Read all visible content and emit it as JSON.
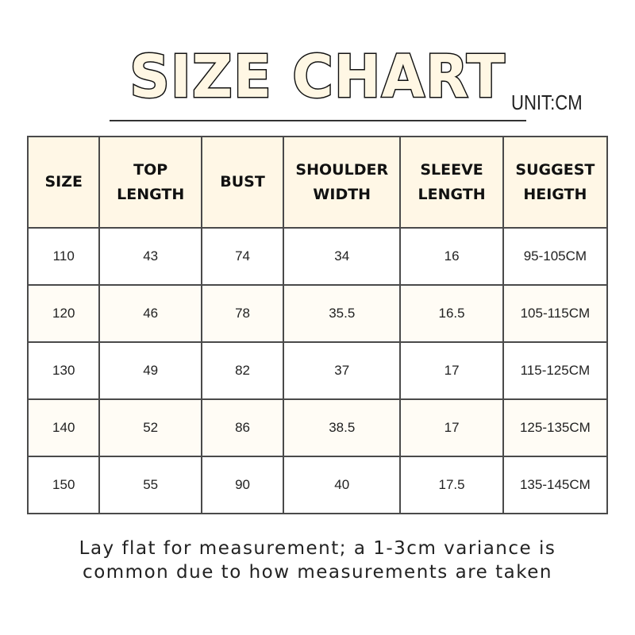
{
  "title": "SIZE CHART",
  "unit": "UNIT:CM",
  "table": {
    "headers": [
      [
        "SIZE",
        ""
      ],
      [
        "TOP",
        "LENGTH"
      ],
      [
        "BUST",
        ""
      ],
      [
        "SHOULDER",
        "WIDTH"
      ],
      [
        "SLEEVE",
        "LENGTH"
      ],
      [
        "SUGGEST",
        "HEIGTH"
      ]
    ],
    "rows": [
      [
        "110",
        "43",
        "74",
        "34",
        "16",
        "95-105CM"
      ],
      [
        "120",
        "46",
        "78",
        "35.5",
        "16.5",
        "105-115CM"
      ],
      [
        "130",
        "49",
        "82",
        "37",
        "17",
        "115-125CM"
      ],
      [
        "140",
        "52",
        "86",
        "38.5",
        "17",
        "125-135CM"
      ],
      [
        "150",
        "55",
        "90",
        "40",
        "17.5",
        "135-145CM"
      ]
    ]
  },
  "note": [
    "Lay flat for measurement; a 1-3cm variance is",
    "common due to how measurements are taken"
  ],
  "colors": {
    "header_fill": "#fff7e6",
    "alt_row_fill": "#fffcf5",
    "border": "#4a4a4a"
  }
}
